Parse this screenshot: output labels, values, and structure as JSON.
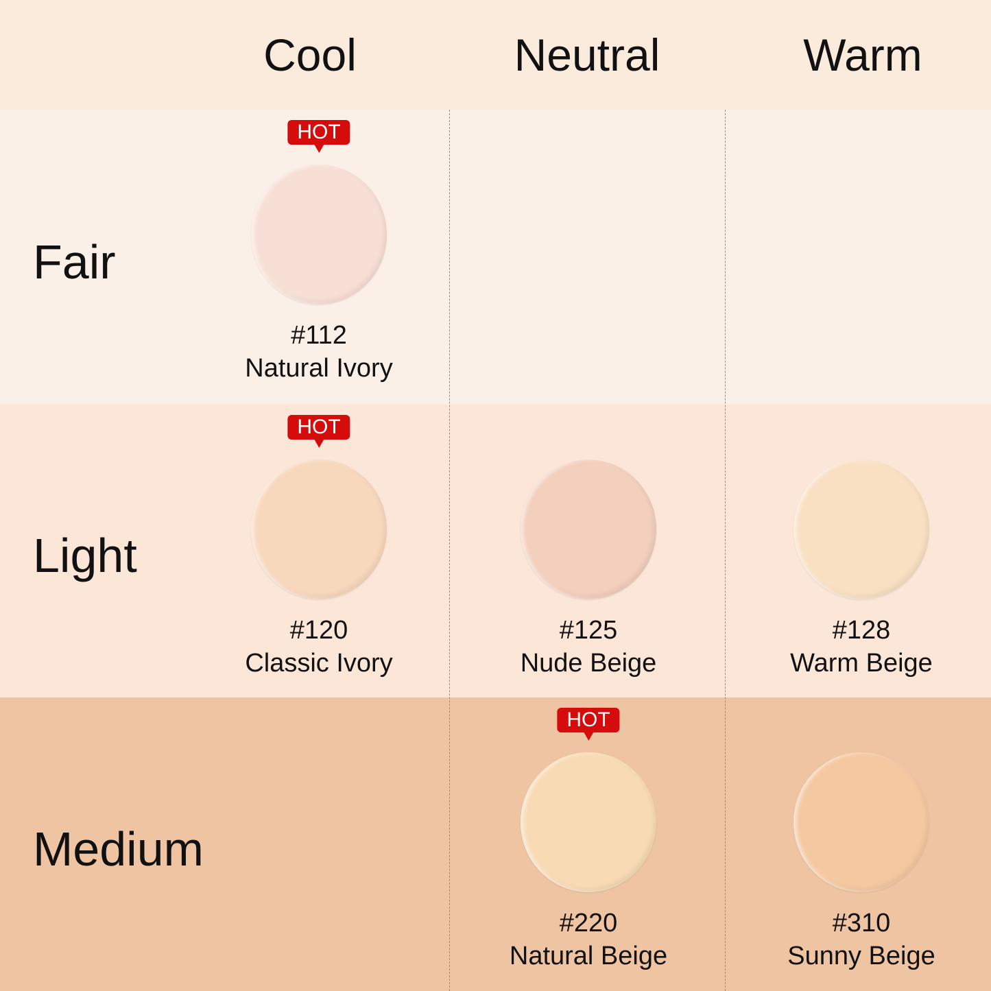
{
  "columns": [
    "Cool",
    "Neutral",
    "Warm"
  ],
  "rows": [
    "Fair",
    "Light",
    "Medium"
  ],
  "badge": "HOT",
  "colors": {
    "header_bg": "#fbebdc",
    "fair_bg": "#fbf0e7",
    "light_bg": "#fce6d8",
    "medium_bg": "#eec4a3",
    "badge": "#d40c0c"
  },
  "shades": [
    {
      "row": "Fair",
      "column": "Cool",
      "code": "#112",
      "name": "Natural Ivory",
      "color": "#f8dfd5",
      "hot": true
    },
    {
      "row": "Light",
      "column": "Cool",
      "code": "#120",
      "name": "Classic Ivory",
      "color": "#f8d8bd",
      "hot": true
    },
    {
      "row": "Light",
      "column": "Neutral",
      "code": "#125",
      "name": "Nude Beige",
      "color": "#f3cfbd",
      "hot": false
    },
    {
      "row": "Light",
      "column": "Warm",
      "code": "#128",
      "name": "Warm Beige",
      "color": "#f9e0c3",
      "hot": false
    },
    {
      "row": "Medium",
      "column": "Neutral",
      "code": "#220",
      "name": "Natural Beige",
      "color": "#f8dbb5",
      "hot": true
    },
    {
      "row": "Medium",
      "column": "Warm",
      "code": "#310",
      "name": "Sunny Beige",
      "color": "#f4c9a2",
      "hot": false
    }
  ]
}
